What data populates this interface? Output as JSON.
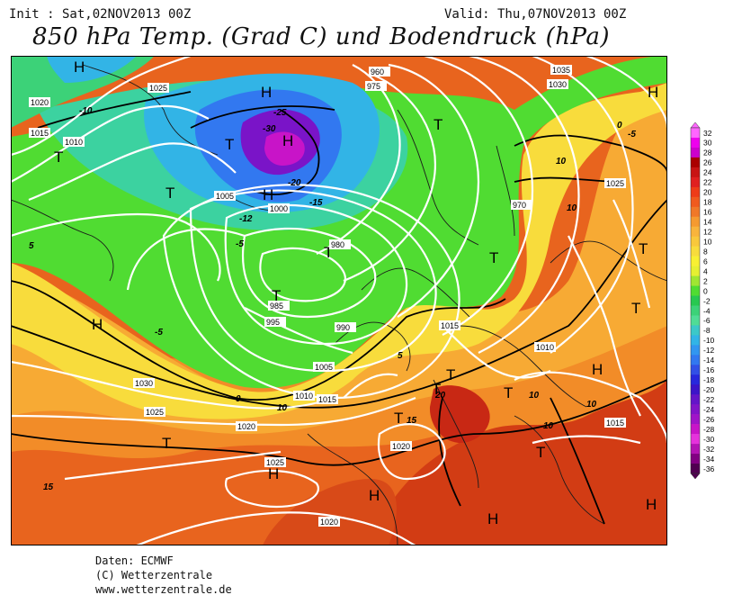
{
  "header": {
    "init": "Init : Sat,02NOV2013 00Z",
    "valid": "Valid: Thu,07NOV2013 00Z",
    "title": "850 hPa Temp. (Grad C) und Bodendruck (hPa)"
  },
  "footer": {
    "line1": "Daten: ECMWF",
    "line2": "(C) Wetterzentrale",
    "line3": "www.wetterzentrale.de"
  },
  "legend": {
    "labels": [
      "32",
      "30",
      "28",
      "26",
      "24",
      "22",
      "20",
      "18",
      "16",
      "14",
      "12",
      "10",
      "8",
      "6",
      "4",
      "2",
      "0",
      "-2",
      "-4",
      "-6",
      "-8",
      "-10",
      "-12",
      "-14",
      "-16",
      "-18",
      "-20",
      "-22",
      "-24",
      "-26",
      "-28",
      "-30",
      "-32",
      "-34",
      "-36"
    ],
    "colors": [
      "#ff66ff",
      "#ee00ee",
      "#cc00cc",
      "#aa0000",
      "#c81414",
      "#e02020",
      "#ee3c18",
      "#f05a1e",
      "#f07828",
      "#f59a30",
      "#f8b43c",
      "#f8c83c",
      "#f8dc3c",
      "#f8f032",
      "#e6f032",
      "#a0e632",
      "#50dc32",
      "#28c850",
      "#3cd278",
      "#50dc96",
      "#3cc8c8",
      "#32b4e6",
      "#3296f0",
      "#3278f0",
      "#3250e6",
      "#2828dc",
      "#3c14c8",
      "#6414c8",
      "#8214c8",
      "#a014c8",
      "#c814c8",
      "#e632dc",
      "#b414b4",
      "#820082",
      "#500050"
    ]
  },
  "map_labels": {
    "pressure_highs": [
      "H",
      "H",
      "H",
      "H",
      "H",
      "H",
      "H",
      "H",
      "H",
      "H",
      "H"
    ],
    "pressure_lows": [
      "T",
      "T",
      "T",
      "T",
      "T",
      "T",
      "T",
      "T",
      "T",
      "T",
      "T",
      "T",
      "T",
      "T",
      "T"
    ],
    "isobar_values": [
      "1035",
      "1030",
      "1025",
      "1020",
      "1015",
      "1010",
      "1005",
      "1000",
      "995",
      "990",
      "985",
      "980",
      "975",
      "970",
      "960"
    ],
    "isotherm_values": [
      "-30",
      "-25",
      "-20",
      "-15",
      "-12",
      "-10",
      "-5",
      "0",
      "5",
      "10",
      "15",
      "20"
    ]
  }
}
